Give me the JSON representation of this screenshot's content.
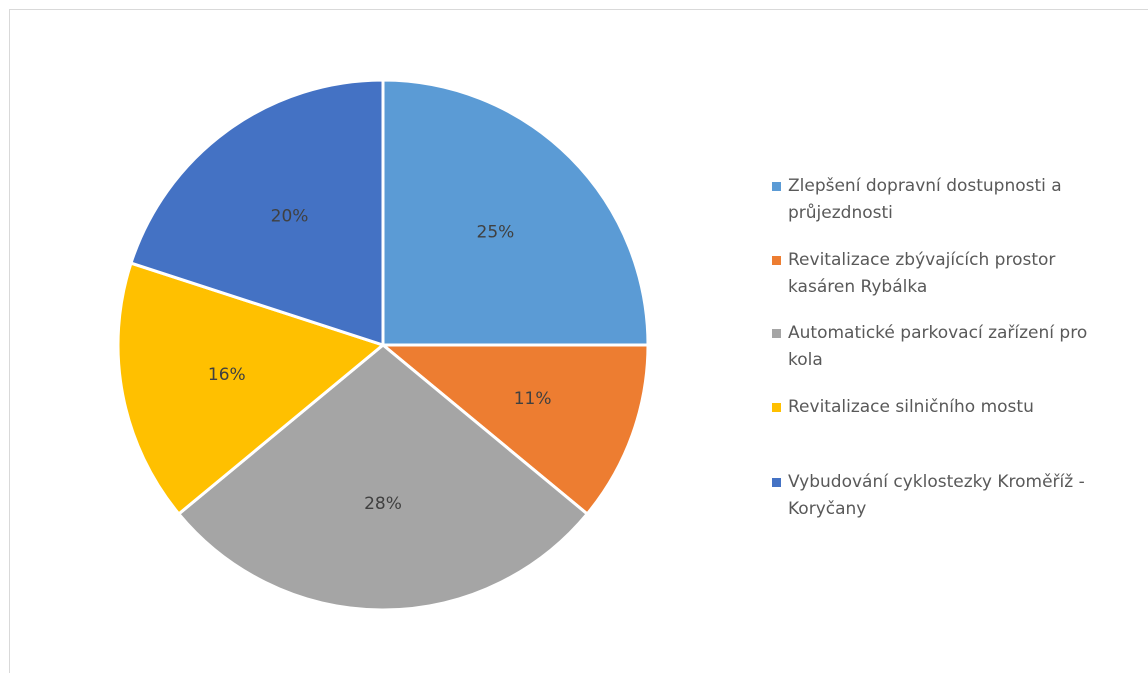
{
  "chart_data": {
    "type": "pie",
    "categories": [
      "Zlepšení dopravní dostupnosti a průjezdnosti",
      "Revitalizace zbývajících prostor kasáren Rybálka",
      "Automatické parkovací zařízení pro kola",
      "Revitalizace silničního mostu",
      "Vybudování cyklostezky Kroměříž - Koryčany"
    ],
    "values": [
      25,
      11,
      28,
      16,
      20
    ],
    "value_labels": [
      "25%",
      "11%",
      "28%",
      "16%",
      "20%"
    ],
    "colors": [
      "#5b9bd5",
      "#ed7d31",
      "#a5a5a5",
      "#ffc000",
      "#4472c4"
    ],
    "legend": "right"
  }
}
